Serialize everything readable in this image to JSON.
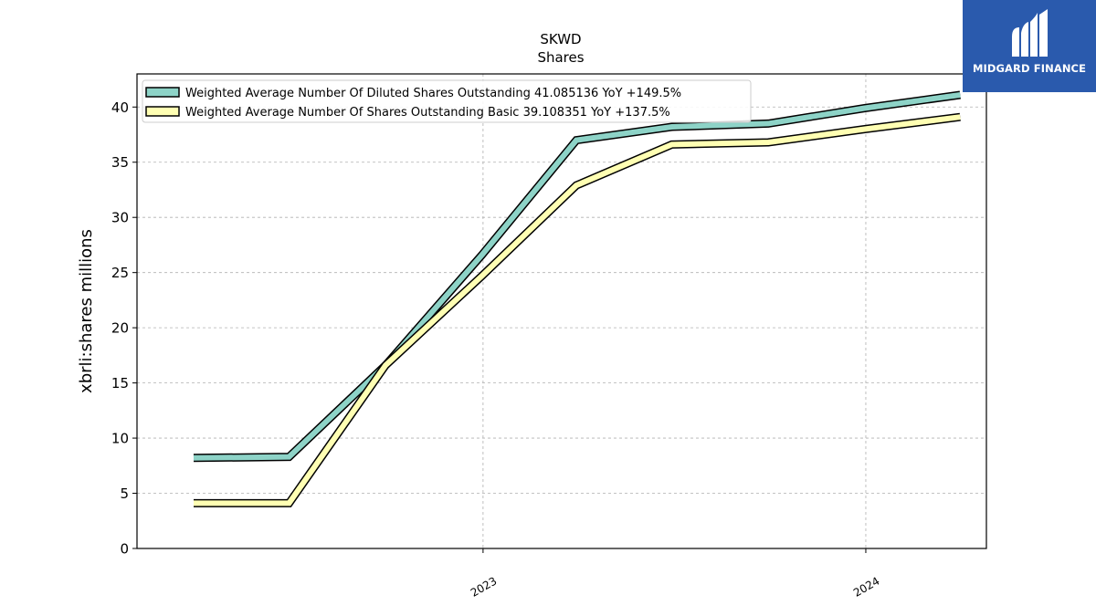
{
  "chart_data": {
    "type": "line",
    "title": "SKWD",
    "subtitle": "Shares",
    "ylabel": "xbrli:shares millions",
    "xlabel": "",
    "ylim": [
      0,
      43
    ],
    "yticks": [
      0,
      5,
      10,
      15,
      20,
      25,
      30,
      35,
      40
    ],
    "x_dates": [
      "2022-03-31",
      "2022-06-30",
      "2022-09-30",
      "2022-12-31",
      "2023-03-31",
      "2023-06-30",
      "2023-09-30",
      "2023-12-31",
      "2024-03-31"
    ],
    "xlim": [
      "2022-02-05",
      "2024-04-25"
    ],
    "xticks": [
      {
        "label": "2023",
        "date": "2023-01-01"
      },
      {
        "label": "2024",
        "date": "2024-01-01"
      }
    ],
    "grid": true,
    "legend_position": "top-left",
    "series": [
      {
        "name": "Weighted Average Number Of Diluted Shares Outstanding  41.085136 YoY +149.5%",
        "color": "#8dd3c7",
        "values": [
          8.2,
          8.3,
          16.6,
          26.6,
          37.0,
          38.2,
          38.5,
          39.9,
          41.1
        ]
      },
      {
        "name": "Weighted Average Number Of Shares Outstanding Basic  39.108351 YoY +137.5%",
        "color": "#ffffb3",
        "values": [
          4.1,
          4.1,
          16.6,
          24.7,
          32.9,
          36.6,
          36.8,
          38.0,
          39.1
        ]
      }
    ]
  },
  "logo": {
    "text": "MIDGARD FINANCE",
    "background": "#2a5aad"
  }
}
